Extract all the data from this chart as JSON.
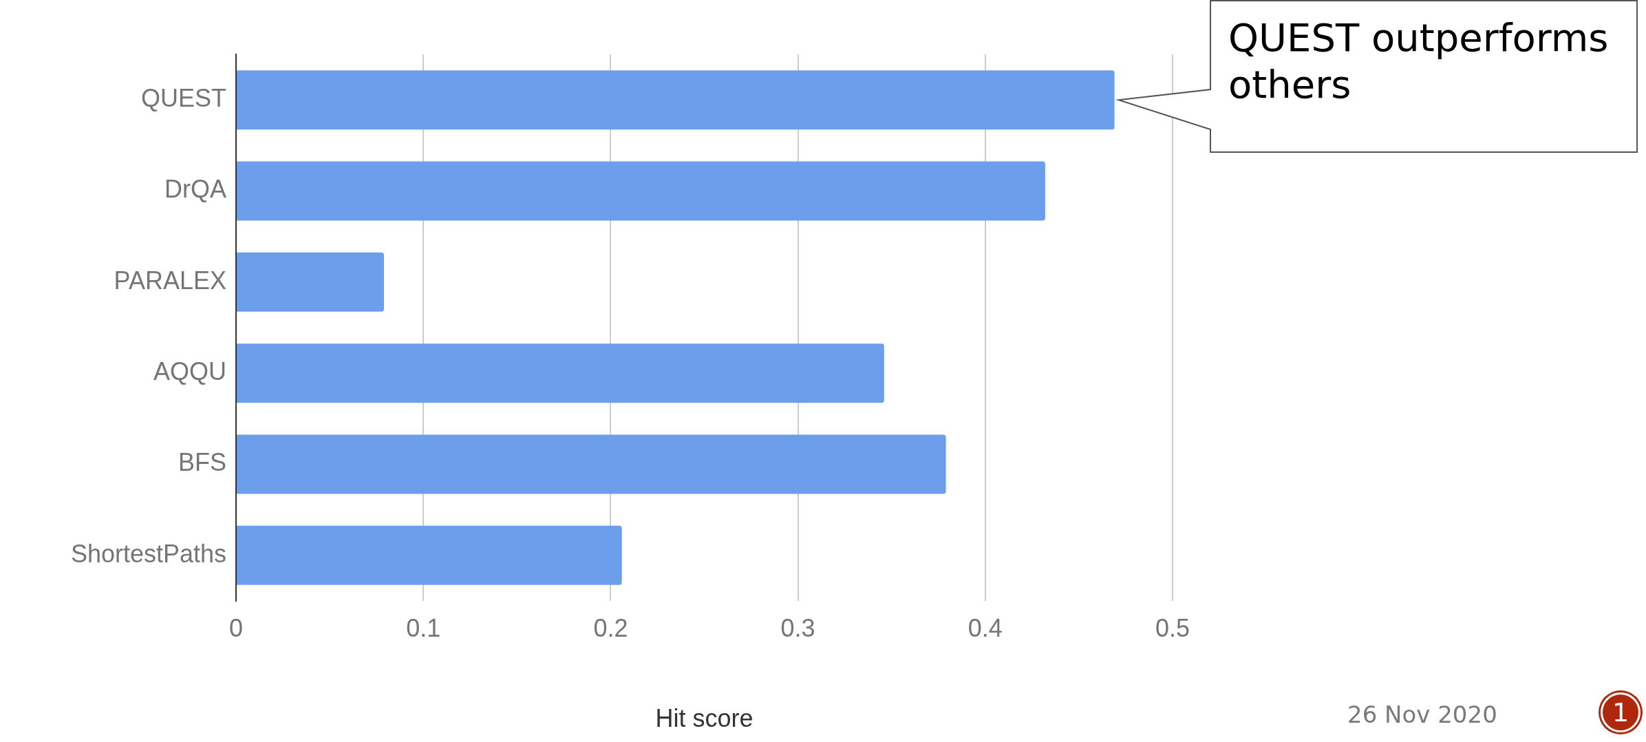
{
  "chart_data": {
    "type": "bar",
    "orientation": "horizontal",
    "xlabel": "Hit score",
    "categories": [
      "QUEST",
      "DrQA",
      "PARALEX",
      "AQQU",
      "BFS",
      "ShortestPaths"
    ],
    "values": [
      0.469,
      0.432,
      0.079,
      0.346,
      0.379,
      0.206
    ],
    "color": "#6d9eeb",
    "xlim": [
      0,
      0.5
    ],
    "xticks": [
      0,
      0.1,
      0.2,
      0.3,
      0.4,
      0.5
    ],
    "grid": "x",
    "legend": false,
    "annotations": [
      {
        "text": "QUEST outperforms others",
        "x": 0.469,
        "y": "QUEST"
      },
      "26 Nov 2020",
      "1"
    ]
  }
}
